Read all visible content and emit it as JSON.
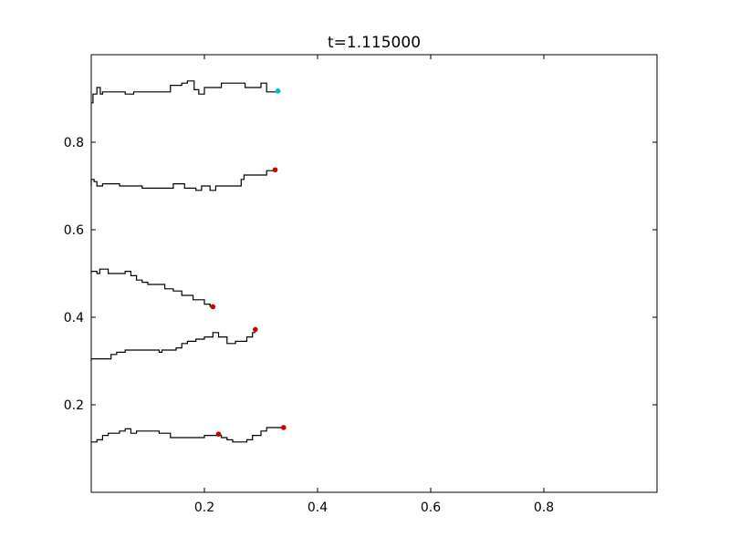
{
  "chart_data": {
    "type": "line",
    "title": "t=1.115000",
    "xlabel": "",
    "ylabel": "",
    "xlim": [
      0.0,
      1.0
    ],
    "ylim": [
      0.0,
      1.0
    ],
    "x_ticks": [
      0.2,
      0.4,
      0.6,
      0.8
    ],
    "x_tick_labels": [
      "0.2",
      "0.4",
      "0.6",
      "0.8"
    ],
    "y_ticks": [
      0.2,
      0.4,
      0.6,
      0.8
    ],
    "y_tick_labels": [
      "0.2",
      "0.4",
      "0.6",
      "0.8"
    ],
    "grid": false,
    "line_color": "#000000",
    "marker_colors": {
      "red": "#cc0000",
      "teal": "#00bfbf"
    },
    "series": [
      {
        "points": [
          [
            0.0,
            0.89
          ],
          [
            0.003,
            0.89
          ],
          [
            0.003,
            0.91
          ],
          [
            0.01,
            0.91
          ],
          [
            0.01,
            0.925
          ],
          [
            0.016,
            0.925
          ],
          [
            0.016,
            0.91
          ],
          [
            0.02,
            0.91
          ],
          [
            0.02,
            0.915
          ],
          [
            0.06,
            0.915
          ],
          [
            0.06,
            0.91
          ],
          [
            0.075,
            0.91
          ],
          [
            0.075,
            0.915
          ],
          [
            0.14,
            0.915
          ],
          [
            0.14,
            0.93
          ],
          [
            0.16,
            0.93
          ],
          [
            0.16,
            0.935
          ],
          [
            0.17,
            0.935
          ],
          [
            0.17,
            0.94
          ],
          [
            0.182,
            0.94
          ],
          [
            0.182,
            0.92
          ],
          [
            0.19,
            0.92
          ],
          [
            0.19,
            0.91
          ],
          [
            0.2,
            0.91
          ],
          [
            0.2,
            0.925
          ],
          [
            0.23,
            0.925
          ],
          [
            0.23,
            0.935
          ],
          [
            0.272,
            0.935
          ],
          [
            0.272,
            0.925
          ],
          [
            0.3,
            0.925
          ],
          [
            0.3,
            0.935
          ],
          [
            0.31,
            0.935
          ],
          [
            0.31,
            0.915
          ],
          [
            0.33,
            0.915
          ]
        ],
        "end_marker": {
          "x": 0.33,
          "y": 0.917,
          "color": "teal"
        }
      },
      {
        "points": [
          [
            0.0,
            0.7
          ],
          [
            0.0,
            0.715
          ],
          [
            0.005,
            0.715
          ],
          [
            0.005,
            0.71
          ],
          [
            0.01,
            0.71
          ],
          [
            0.01,
            0.7
          ],
          [
            0.02,
            0.7
          ],
          [
            0.02,
            0.705
          ],
          [
            0.05,
            0.705
          ],
          [
            0.05,
            0.7
          ],
          [
            0.09,
            0.7
          ],
          [
            0.09,
            0.695
          ],
          [
            0.145,
            0.695
          ],
          [
            0.145,
            0.705
          ],
          [
            0.165,
            0.705
          ],
          [
            0.165,
            0.695
          ],
          [
            0.185,
            0.695
          ],
          [
            0.185,
            0.69
          ],
          [
            0.195,
            0.69
          ],
          [
            0.195,
            0.7
          ],
          [
            0.21,
            0.7
          ],
          [
            0.21,
            0.69
          ],
          [
            0.22,
            0.69
          ],
          [
            0.22,
            0.7
          ],
          [
            0.265,
            0.7
          ],
          [
            0.265,
            0.715
          ],
          [
            0.27,
            0.715
          ],
          [
            0.27,
            0.725
          ],
          [
            0.31,
            0.725
          ],
          [
            0.31,
            0.735
          ],
          [
            0.325,
            0.735
          ]
        ],
        "end_marker": {
          "x": 0.325,
          "y": 0.737,
          "color": "red"
        }
      },
      {
        "points": [
          [
            0.0,
            0.5
          ],
          [
            0.0,
            0.505
          ],
          [
            0.01,
            0.505
          ],
          [
            0.01,
            0.5
          ],
          [
            0.015,
            0.5
          ],
          [
            0.015,
            0.51
          ],
          [
            0.03,
            0.51
          ],
          [
            0.03,
            0.5
          ],
          [
            0.06,
            0.5
          ],
          [
            0.06,
            0.505
          ],
          [
            0.07,
            0.505
          ],
          [
            0.07,
            0.495
          ],
          [
            0.08,
            0.495
          ],
          [
            0.08,
            0.485
          ],
          [
            0.09,
            0.485
          ],
          [
            0.09,
            0.48
          ],
          [
            0.1,
            0.48
          ],
          [
            0.1,
            0.475
          ],
          [
            0.13,
            0.475
          ],
          [
            0.13,
            0.465
          ],
          [
            0.145,
            0.465
          ],
          [
            0.145,
            0.46
          ],
          [
            0.16,
            0.46
          ],
          [
            0.16,
            0.45
          ],
          [
            0.18,
            0.45
          ],
          [
            0.18,
            0.44
          ],
          [
            0.2,
            0.44
          ],
          [
            0.2,
            0.43
          ],
          [
            0.21,
            0.43
          ],
          [
            0.21,
            0.425
          ],
          [
            0.215,
            0.425
          ]
        ],
        "end_marker": {
          "x": 0.215,
          "y": 0.424,
          "color": "red"
        }
      },
      {
        "points": [
          [
            0.0,
            0.3
          ],
          [
            0.0,
            0.305
          ],
          [
            0.035,
            0.305
          ],
          [
            0.035,
            0.315
          ],
          [
            0.045,
            0.315
          ],
          [
            0.045,
            0.32
          ],
          [
            0.06,
            0.32
          ],
          [
            0.06,
            0.325
          ],
          [
            0.12,
            0.325
          ],
          [
            0.12,
            0.32
          ],
          [
            0.125,
            0.32
          ],
          [
            0.125,
            0.325
          ],
          [
            0.15,
            0.325
          ],
          [
            0.15,
            0.33
          ],
          [
            0.16,
            0.33
          ],
          [
            0.16,
            0.34
          ],
          [
            0.17,
            0.34
          ],
          [
            0.17,
            0.345
          ],
          [
            0.185,
            0.345
          ],
          [
            0.185,
            0.35
          ],
          [
            0.2,
            0.35
          ],
          [
            0.2,
            0.355
          ],
          [
            0.215,
            0.355
          ],
          [
            0.215,
            0.365
          ],
          [
            0.225,
            0.365
          ],
          [
            0.225,
            0.355
          ],
          [
            0.24,
            0.355
          ],
          [
            0.24,
            0.34
          ],
          [
            0.255,
            0.34
          ],
          [
            0.255,
            0.345
          ],
          [
            0.275,
            0.345
          ],
          [
            0.275,
            0.355
          ],
          [
            0.285,
            0.355
          ],
          [
            0.285,
            0.365
          ],
          [
            0.29,
            0.365
          ]
        ],
        "end_marker": {
          "x": 0.29,
          "y": 0.372,
          "color": "red"
        }
      },
      {
        "points": [
          [
            0.0,
            0.115
          ],
          [
            0.01,
            0.115
          ],
          [
            0.01,
            0.12
          ],
          [
            0.02,
            0.12
          ],
          [
            0.02,
            0.13
          ],
          [
            0.03,
            0.13
          ],
          [
            0.03,
            0.135
          ],
          [
            0.05,
            0.135
          ],
          [
            0.05,
            0.14
          ],
          [
            0.06,
            0.14
          ],
          [
            0.06,
            0.145
          ],
          [
            0.07,
            0.145
          ],
          [
            0.07,
            0.135
          ],
          [
            0.08,
            0.135
          ],
          [
            0.08,
            0.14
          ],
          [
            0.12,
            0.14
          ],
          [
            0.12,
            0.135
          ],
          [
            0.14,
            0.135
          ],
          [
            0.14,
            0.125
          ],
          [
            0.2,
            0.125
          ],
          [
            0.2,
            0.13
          ],
          [
            0.23,
            0.13
          ],
          [
            0.23,
            0.125
          ],
          [
            0.24,
            0.125
          ],
          [
            0.24,
            0.12
          ],
          [
            0.25,
            0.12
          ],
          [
            0.25,
            0.115
          ],
          [
            0.275,
            0.115
          ],
          [
            0.275,
            0.12
          ],
          [
            0.285,
            0.12
          ],
          [
            0.285,
            0.13
          ],
          [
            0.3,
            0.13
          ],
          [
            0.3,
            0.14
          ],
          [
            0.31,
            0.14
          ],
          [
            0.31,
            0.148
          ],
          [
            0.34,
            0.148
          ]
        ],
        "end_marker": {
          "x": 0.34,
          "y": 0.148,
          "color": "red"
        },
        "extra_markers": [
          {
            "x": 0.225,
            "y": 0.133,
            "color": "red"
          }
        ]
      }
    ]
  }
}
